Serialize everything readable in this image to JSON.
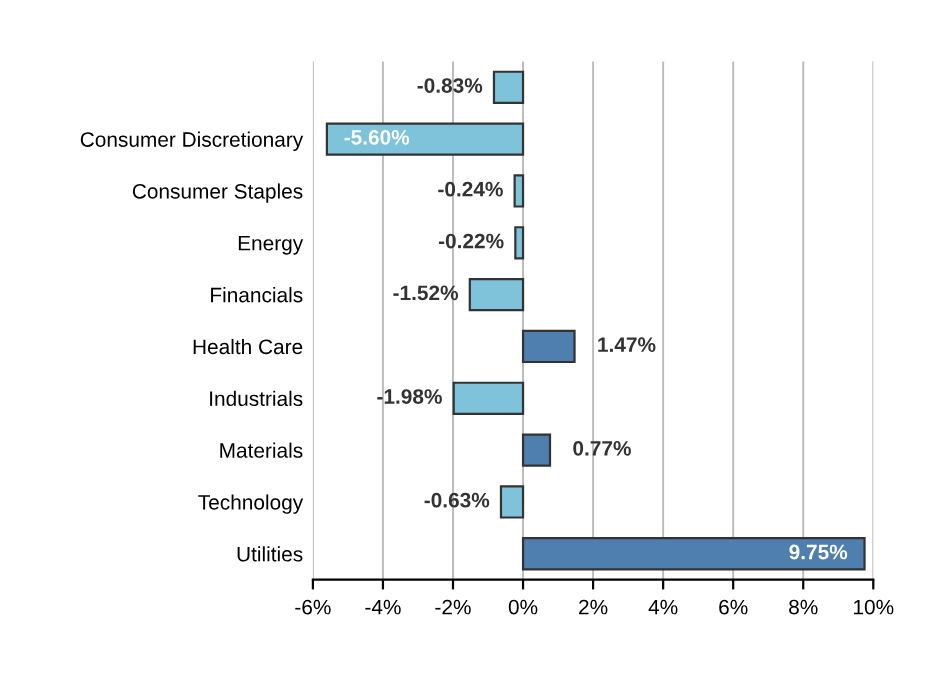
{
  "chart_data": {
    "type": "bar",
    "orientation": "horizontal",
    "categories": [
      null,
      "Consumer Discretionary",
      "Consumer Staples",
      "Energy",
      "Financials",
      "Health Care",
      "Industrials",
      "Materials",
      "Technology",
      "Utilities"
    ],
    "values": [
      -0.83,
      -5.6,
      -0.24,
      -0.22,
      -1.52,
      1.47,
      -1.98,
      0.77,
      -0.63,
      9.75
    ],
    "colors": [
      "#7ec3d9",
      "#7ec3d9",
      "#7ec3d9",
      "#7ec3d9",
      "#7ec3d9",
      "#4f7fae",
      "#7ec3d9",
      "#4f7fae",
      "#7ec3d9",
      "#4f7fae"
    ],
    "value_labels": [
      "-0.83%",
      "-5.60%",
      "-0.24%",
      "-0.22%",
      "-1.52%",
      "1.47%",
      "-1.98%",
      "0.77%",
      "-0.63%",
      "9.75%"
    ],
    "xlim": [
      -6,
      10
    ],
    "xticks": [
      {
        "value": -6,
        "label": "-6%"
      },
      {
        "value": -4,
        "label": "-4%"
      },
      {
        "value": -2,
        "label": "-2%"
      },
      {
        "value": 0,
        "label": "0%"
      },
      {
        "value": 2,
        "label": "2%"
      },
      {
        "value": 4,
        "label": "4%"
      },
      {
        "value": 6,
        "label": "6%"
      },
      {
        "value": 8,
        "label": "8%"
      },
      {
        "value": 10,
        "label": "10%"
      }
    ],
    "grid": "x",
    "legend": false
  }
}
